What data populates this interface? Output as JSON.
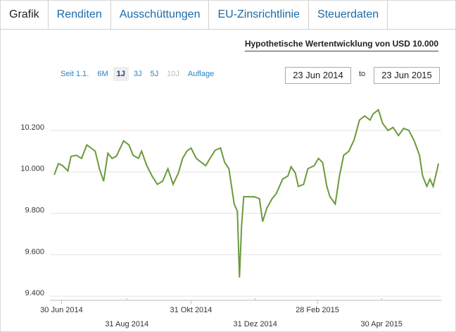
{
  "tabs": [
    "Grafik",
    "Renditen",
    "Ausschüttungen",
    "EU-Zinsrichtlinie",
    "Steuerdaten"
  ],
  "heading": "Hypothetische Wertentwicklung von USD 10.000",
  "ranges": [
    "Seit 1.1.",
    "6M",
    "1J",
    "3J",
    "5J",
    "10J",
    "Auflage"
  ],
  "date_from": "23 Jun 2014",
  "date_separator": "to",
  "date_to": "23 Jun 2015",
  "chart_data": {
    "type": "line",
    "color": "#6a9a3a",
    "grid": true,
    "xlim": [
      "2014-06-23",
      "2015-06-23"
    ],
    "xticks": [
      {
        "value": "2014-06-30",
        "label": "30 Jun 2014"
      },
      {
        "value": "2014-08-31",
        "label": "31 Aug 2014"
      },
      {
        "value": "2014-10-31",
        "label": "31 Okt 2014"
      },
      {
        "value": "2014-12-31",
        "label": "31 Dez 2014"
      },
      {
        "value": "2015-02-28",
        "label": "28 Feb 2015"
      },
      {
        "value": "2015-04-30",
        "label": "30 Apr 2015"
      }
    ],
    "ylim": [
      9380,
      10350
    ],
    "yticks": [
      {
        "value": 9400,
        "label": "9.400"
      },
      {
        "value": 9600,
        "label": "9.600"
      },
      {
        "value": 9800,
        "label": "9.800"
      },
      {
        "value": 10000,
        "label": "10.000"
      },
      {
        "value": 10200,
        "label": "10.200"
      }
    ],
    "x": [
      "2014-06-23",
      "2014-06-27",
      "2014-07-01",
      "2014-07-06",
      "2014-07-09",
      "2014-07-14",
      "2014-07-19",
      "2014-07-24",
      "2014-07-28",
      "2014-08-01",
      "2014-08-05",
      "2014-08-09",
      "2014-08-13",
      "2014-08-17",
      "2014-08-21",
      "2014-08-28",
      "2014-09-02",
      "2014-09-06",
      "2014-09-11",
      "2014-09-14",
      "2014-09-19",
      "2014-09-24",
      "2014-09-29",
      "2014-10-04",
      "2014-10-09",
      "2014-10-14",
      "2014-10-19",
      "2014-10-23",
      "2014-10-27",
      "2014-10-31",
      "2014-11-05",
      "2014-11-10",
      "2014-11-14",
      "2014-11-18",
      "2014-11-23",
      "2014-11-28",
      "2014-12-02",
      "2014-12-06",
      "2014-12-11",
      "2014-12-14",
      "2014-12-16",
      "2014-12-18",
      "2014-12-20",
      "2014-12-24",
      "2014-12-30",
      "2015-01-04",
      "2015-01-07",
      "2015-01-11",
      "2015-01-16",
      "2015-01-20",
      "2015-01-26",
      "2015-01-31",
      "2015-02-03",
      "2015-02-07",
      "2015-02-10",
      "2015-02-15",
      "2015-02-19",
      "2015-02-25",
      "2015-03-01",
      "2015-03-05",
      "2015-03-09",
      "2015-03-12",
      "2015-03-17",
      "2015-03-21",
      "2015-03-25",
      "2015-03-30",
      "2015-04-04",
      "2015-04-09",
      "2015-04-14",
      "2015-04-19",
      "2015-04-22",
      "2015-04-27",
      "2015-05-01",
      "2015-05-06",
      "2015-05-11",
      "2015-05-16",
      "2015-05-21",
      "2015-05-26",
      "2015-05-31",
      "2015-06-05",
      "2015-06-08",
      "2015-06-12",
      "2015-06-15",
      "2015-06-18",
      "2015-06-22",
      "2015-06-23"
    ],
    "values": [
      9985,
      10040,
      10030,
      10005,
      10075,
      10080,
      10065,
      10130,
      10115,
      10100,
      10015,
      9955,
      10090,
      10065,
      10075,
      10150,
      10130,
      10080,
      10065,
      10100,
      10030,
      9980,
      9940,
      9955,
      10015,
      9940,
      9995,
      10065,
      10100,
      10115,
      10065,
      10045,
      10030,
      10065,
      10105,
      10115,
      10045,
      10015,
      9845,
      9810,
      9490,
      9740,
      9880,
      9880,
      9880,
      9870,
      9760,
      9825,
      9870,
      9895,
      9965,
      9980,
      10025,
      9995,
      9930,
      9940,
      10015,
      10030,
      10065,
      10045,
      9930,
      9880,
      9845,
      9980,
      10080,
      10100,
      10155,
      10250,
      10270,
      10250,
      10280,
      10300,
      10235,
      10200,
      10215,
      10175,
      10210,
      10200,
      10150,
      10080,
      9980,
      9930,
      9965,
      9930,
      10015,
      10040
    ]
  }
}
